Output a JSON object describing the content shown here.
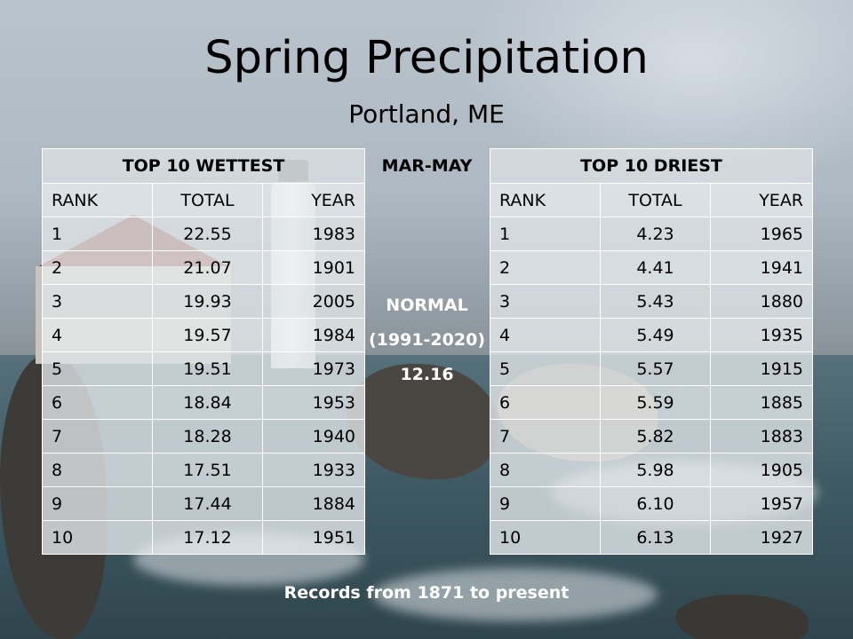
{
  "title": "Spring Precipitation",
  "subtitle": "Portland, ME",
  "season_label": "MAR-MAY",
  "normal": {
    "label": "NORMAL",
    "period": "(1991-2020)",
    "value": "12.16"
  },
  "footer": "Records from 1871 to present",
  "wettest": {
    "heading": "TOP 10 WETTEST",
    "columns": [
      "RANK",
      "TOTAL",
      "YEAR"
    ],
    "rows": [
      [
        "1",
        "22.55",
        "1983"
      ],
      [
        "2",
        "21.07",
        "1901"
      ],
      [
        "3",
        "19.93",
        "2005"
      ],
      [
        "4",
        "19.57",
        "1984"
      ],
      [
        "5",
        "19.51",
        "1973"
      ],
      [
        "6",
        "18.84",
        "1953"
      ],
      [
        "7",
        "18.28",
        "1940"
      ],
      [
        "8",
        "17.51",
        "1933"
      ],
      [
        "9",
        "17.44",
        "1884"
      ],
      [
        "10",
        "17.12",
        "1951"
      ]
    ]
  },
  "driest": {
    "heading": "TOP 10 DRIEST",
    "columns": [
      "RANK",
      "TOTAL",
      "YEAR"
    ],
    "rows": [
      [
        "1",
        "4.23",
        "1965"
      ],
      [
        "2",
        "4.41",
        "1941"
      ],
      [
        "3",
        "5.43",
        "1880"
      ],
      [
        "4",
        "5.49",
        "1935"
      ],
      [
        "5",
        "5.57",
        "1915"
      ],
      [
        "6",
        "5.59",
        "1885"
      ],
      [
        "7",
        "5.82",
        "1883"
      ],
      [
        "8",
        "5.98",
        "1905"
      ],
      [
        "9",
        "6.10",
        "1957"
      ],
      [
        "10",
        "6.13",
        "1927"
      ]
    ]
  }
}
